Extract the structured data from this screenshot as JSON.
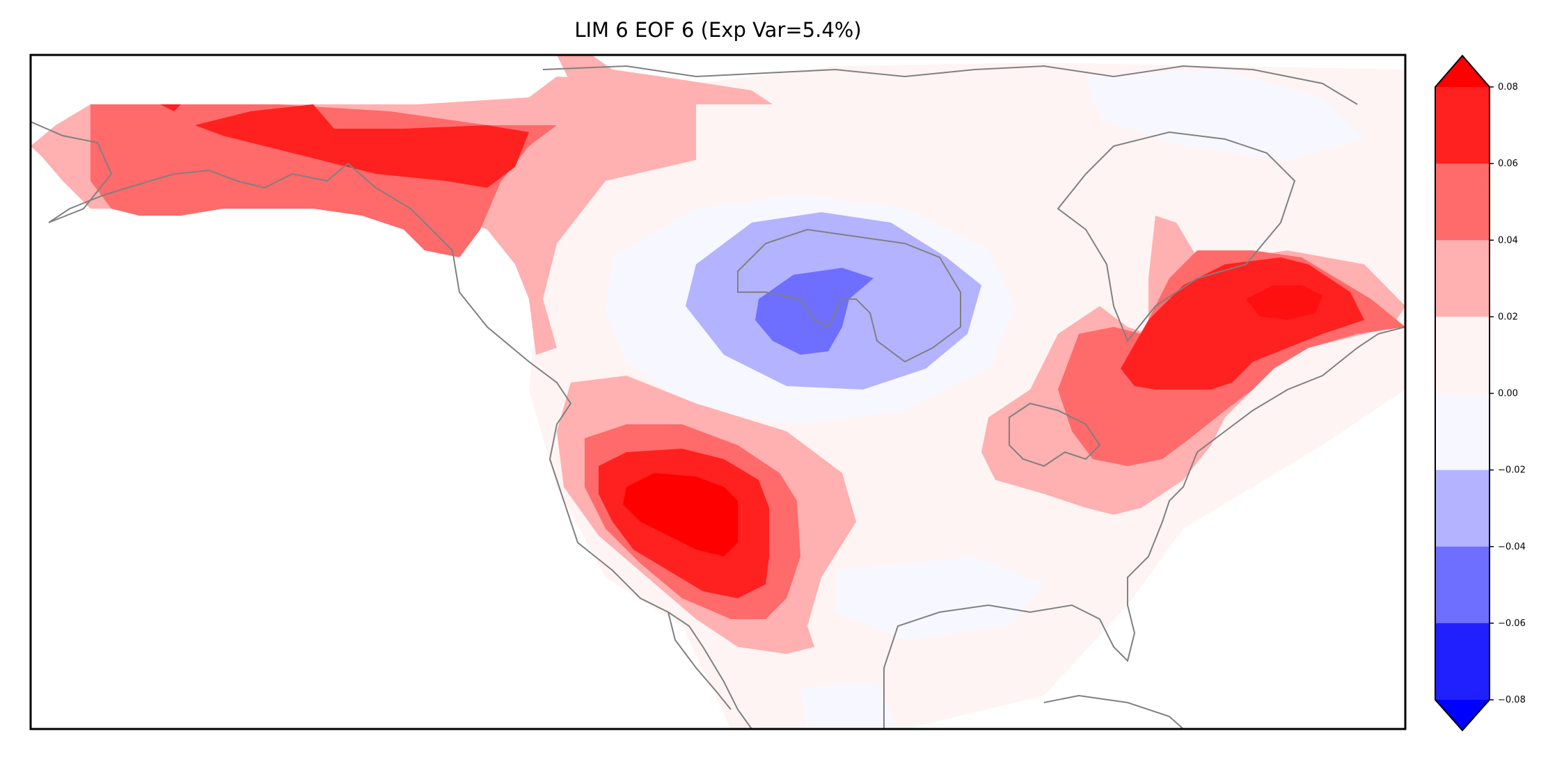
{
  "title": "LIM 6 EOF 6 (Exp Var=5.4%)",
  "colorbar": {
    "tick_labels": [
      "0.08",
      "0.06",
      "0.04",
      "0.02",
      "0.00",
      "−0.02",
      "−0.04",
      "−0.06",
      "−0.08"
    ],
    "levels": [
      -0.08,
      -0.06,
      -0.04,
      -0.02,
      0.0,
      0.02,
      0.04,
      0.06,
      0.08
    ],
    "colors_top_to_bottom": [
      "#ff2020",
      "#ff6a6a",
      "#ffb0b0",
      "#fff4f4",
      "#f7f7ff",
      "#b3b3ff",
      "#6e6eff",
      "#2020ff"
    ],
    "extend_max_color": "#ff0000",
    "extend_min_color": "#0000ff",
    "extend": "both"
  },
  "colors": {
    "neg_weak": "#f7f7ff",
    "neg_mid": "#b3b3ff",
    "neg_strong": "#6e6eff",
    "pos_weak": "#fff4f4",
    "pos_mid": "#ffb0b0",
    "pos_strong": "#ff6a6a",
    "pos_vstrong": "#ff2020",
    "pos_max": "#ff0000",
    "coastline": "#808080",
    "frame": "#000000"
  },
  "map": {
    "region": "North America",
    "field": "EOF 6 loading",
    "features": [
      {
        "name": "alaska-yukon-positive",
        "sign": "positive",
        "peak_level": 0.06
      },
      {
        "name": "hudson-bay-negative",
        "sign": "negative",
        "peak_level": -0.04
      },
      {
        "name": "southwest-us-positive",
        "sign": "positive",
        "peak_level": 0.08
      },
      {
        "name": "eastern-canada-positive",
        "sign": "positive",
        "peak_level": 0.06
      }
    ]
  }
}
